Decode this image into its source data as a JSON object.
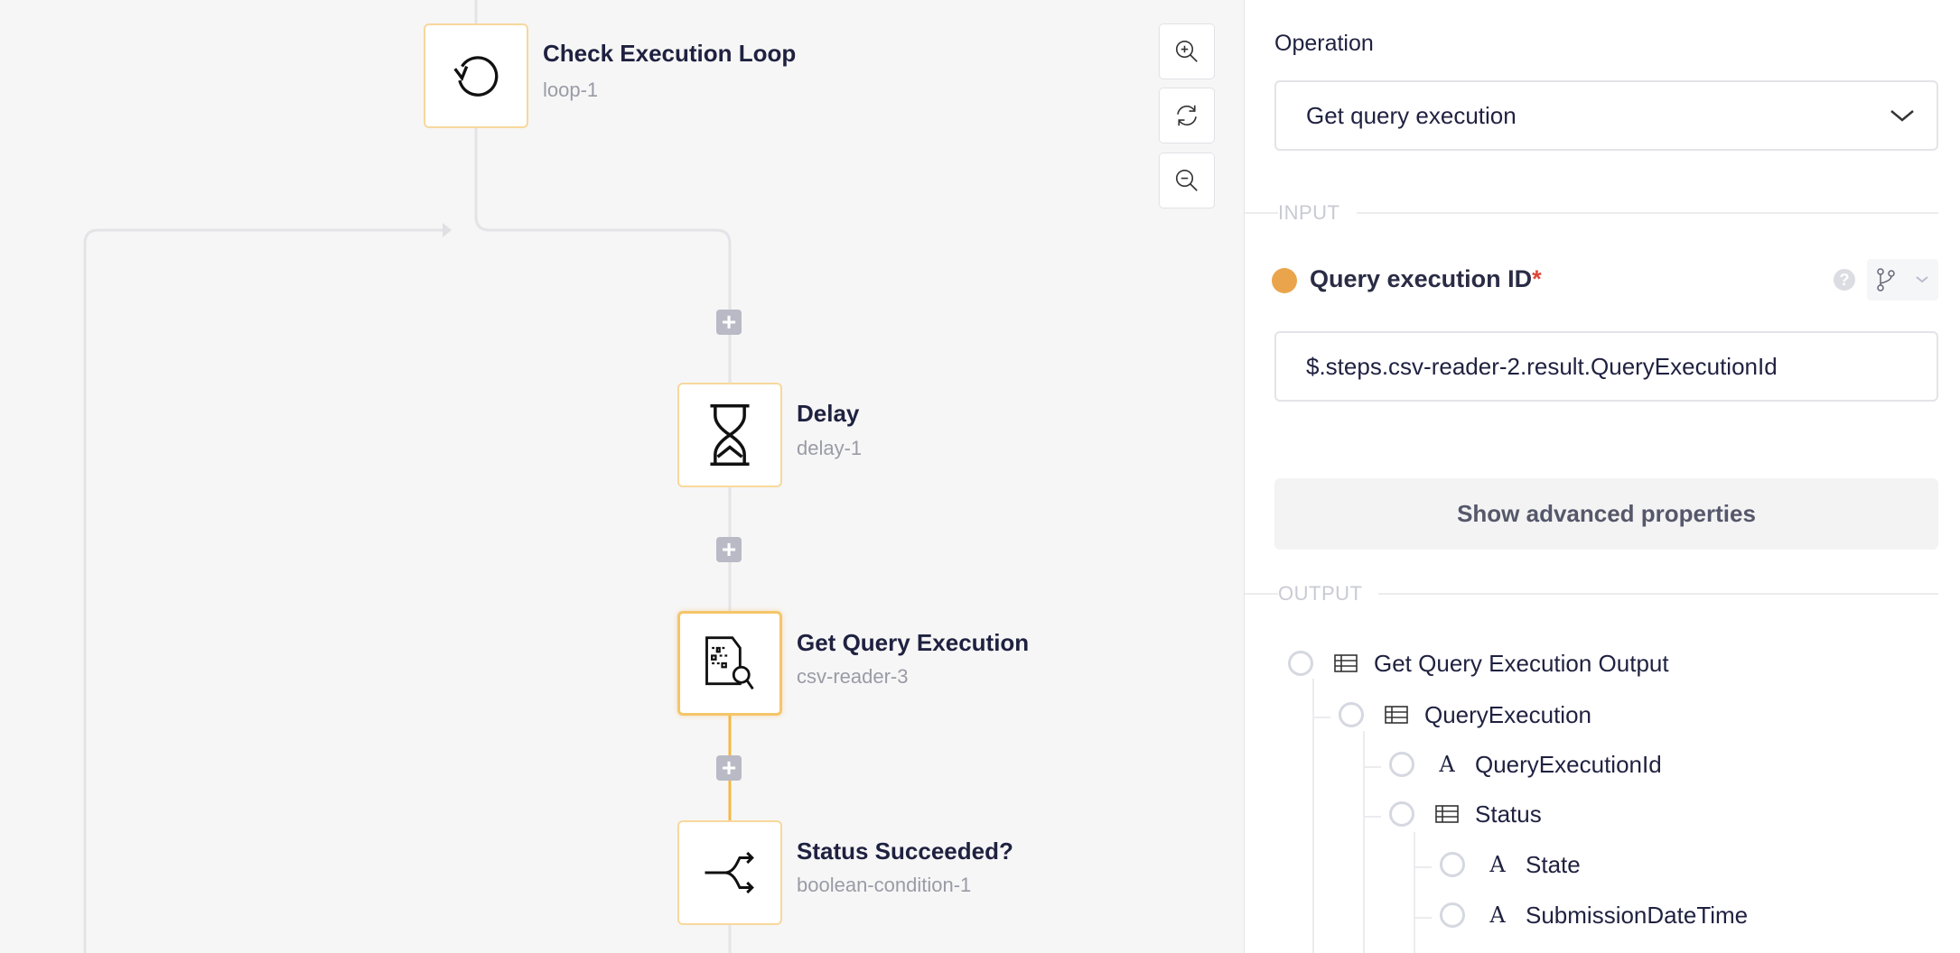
{
  "canvas": {
    "nodes": [
      {
        "title": "Check Execution Loop",
        "id": "loop-1",
        "icon": "loop-icon"
      },
      {
        "title": "Delay",
        "id": "delay-1",
        "icon": "hourglass-icon"
      },
      {
        "title": "Get Query Execution",
        "id": "csv-reader-3",
        "icon": "document-search-icon"
      },
      {
        "title": "Status Succeeded?",
        "id": "boolean-condition-1",
        "icon": "branch-split-icon"
      }
    ],
    "zoom_controls": [
      "zoom-in-icon",
      "reset-icon",
      "zoom-out-icon"
    ],
    "accent_color": "#f5b942"
  },
  "panel": {
    "operation_label": "Operation",
    "operation_value": "Get query execution",
    "input_section": "INPUT",
    "field_label": "Query execution ID",
    "required_mark": "*",
    "field_value": "$.steps.csv-reader-2.result.QueryExecutionId",
    "advanced_button": "Show advanced properties",
    "output_section": "OUTPUT",
    "tree": [
      {
        "label": "Get Query Execution Output",
        "type": "object",
        "depth": 0
      },
      {
        "label": "QueryExecution",
        "type": "object",
        "depth": 1
      },
      {
        "label": "QueryExecutionId",
        "type": "string",
        "depth": 2
      },
      {
        "label": "Status",
        "type": "object",
        "depth": 2
      },
      {
        "label": "State",
        "type": "string",
        "depth": 3
      },
      {
        "label": "SubmissionDateTime",
        "type": "string",
        "depth": 3
      }
    ]
  }
}
